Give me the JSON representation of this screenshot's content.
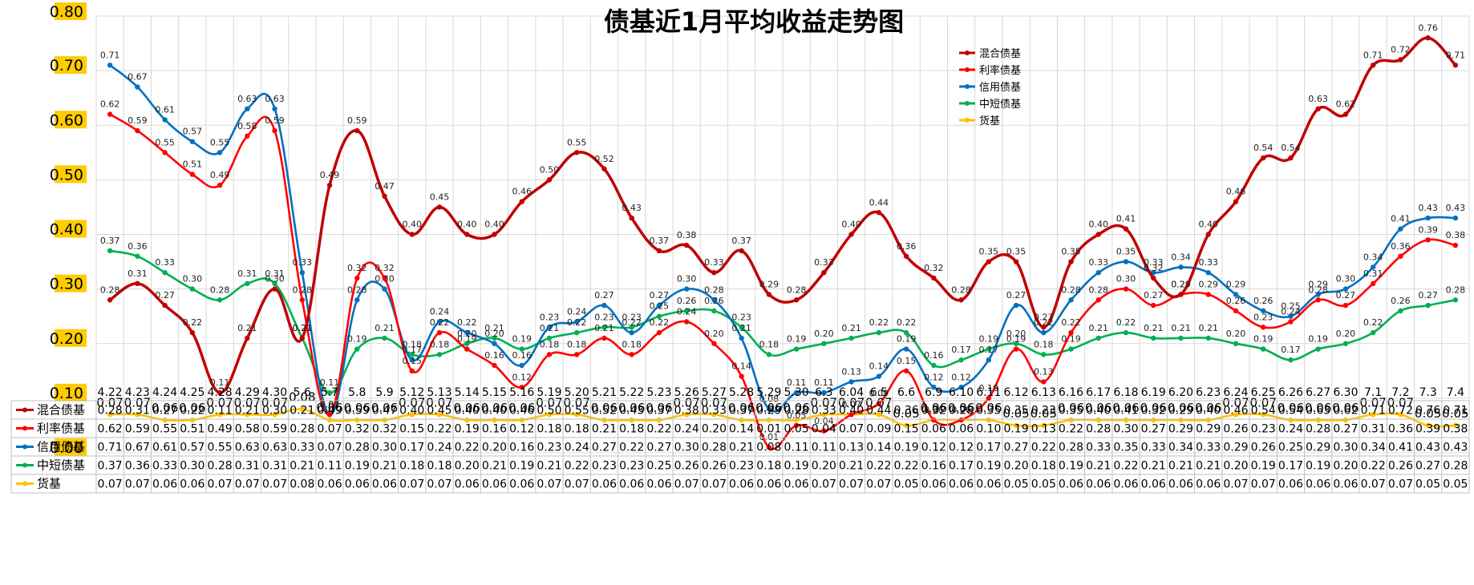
{
  "chart_data": {
    "type": "line",
    "title": "债基近1月平均收益走势图",
    "ylim": [
      0,
      0.8
    ],
    "yticks": [
      "0.00",
      "0.10",
      "0.20",
      "0.30",
      "0.40",
      "0.50",
      "0.60",
      "0.70",
      "0.80"
    ],
    "grid": true,
    "legend_position": "top-right",
    "categories": [
      "4.22",
      "4.23",
      "4.24",
      "4.25",
      "4.28",
      "4.29",
      "4.30",
      "5.6",
      "5.7",
      "5.8",
      "5.9",
      "5.12",
      "5.13",
      "5.14",
      "5.15",
      "5.16",
      "5.19",
      "5.20",
      "5.21",
      "5.22",
      "5.23",
      "5.26",
      "5.27",
      "5.28",
      "5.29",
      "5.30",
      "6.3",
      "6.04",
      "6.5",
      "6.6",
      "6.9",
      "6.10",
      "6.11",
      "6.12",
      "6.13",
      "6.16",
      "6.17",
      "6.18",
      "6.19",
      "6.20",
      "6.23",
      "6.24",
      "6.25",
      "6.26",
      "6.27",
      "6.30",
      "7.1",
      "7.2",
      "7.3",
      "7.4"
    ],
    "series": [
      {
        "name": "混合债基",
        "color": "#c00000",
        "values": [
          0.28,
          0.31,
          0.27,
          0.22,
          0.11,
          0.21,
          0.3,
          0.21,
          0.49,
          0.59,
          0.47,
          0.4,
          0.45,
          0.4,
          0.4,
          0.46,
          0.5,
          0.55,
          0.52,
          0.43,
          0.37,
          0.38,
          0.33,
          0.37,
          0.29,
          0.28,
          0.33,
          0.4,
          0.44,
          0.36,
          0.32,
          0.28,
          0.35,
          0.35,
          0.23,
          0.35,
          0.4,
          0.41,
          0.32,
          0.29,
          0.4,
          0.46,
          0.54,
          0.54,
          0.63,
          0.62,
          0.71,
          0.72,
          0.76,
          0.71
        ]
      },
      {
        "name": "利率债基",
        "color": "#ff0000",
        "values": [
          0.62,
          0.59,
          0.55,
          0.51,
          0.49,
          0.58,
          0.59,
          0.28,
          0.07,
          0.32,
          0.32,
          0.15,
          0.22,
          0.19,
          0.16,
          0.12,
          0.18,
          0.18,
          0.21,
          0.18,
          0.22,
          0.24,
          0.2,
          0.14,
          0.01,
          0.05,
          0.04,
          0.07,
          0.09,
          0.15,
          0.06,
          0.06,
          0.1,
          0.19,
          0.13,
          0.22,
          0.28,
          0.3,
          0.27,
          0.29,
          0.29,
          0.26,
          0.23,
          0.24,
          0.28,
          0.27,
          0.31,
          0.36,
          0.39,
          0.38
        ]
      },
      {
        "name": "信用债基",
        "color": "#0070c0",
        "values": [
          0.71,
          0.67,
          0.61,
          0.57,
          0.55,
          0.63,
          0.63,
          0.33,
          0.07,
          0.28,
          0.3,
          0.17,
          0.24,
          0.22,
          0.2,
          0.16,
          0.23,
          0.24,
          0.27,
          0.22,
          0.27,
          0.3,
          0.28,
          0.21,
          0.08,
          0.11,
          0.11,
          0.13,
          0.14,
          0.19,
          0.12,
          0.12,
          0.17,
          0.27,
          0.22,
          0.28,
          0.33,
          0.35,
          0.33,
          0.34,
          0.33,
          0.29,
          0.26,
          0.25,
          0.29,
          0.3,
          0.34,
          0.41,
          0.43,
          0.43
        ]
      },
      {
        "name": "中短债基",
        "color": "#00b050",
        "values": [
          0.37,
          0.36,
          0.33,
          0.3,
          0.28,
          0.31,
          0.31,
          0.21,
          0.11,
          0.19,
          0.21,
          0.18,
          0.18,
          0.2,
          0.21,
          0.19,
          0.21,
          0.22,
          0.23,
          0.23,
          0.25,
          0.26,
          0.26,
          0.23,
          0.18,
          0.19,
          0.2,
          0.21,
          0.22,
          0.22,
          0.16,
          0.17,
          0.19,
          0.2,
          0.18,
          0.19,
          0.21,
          0.22,
          0.21,
          0.21,
          0.21,
          0.2,
          0.19,
          0.17,
          0.19,
          0.2,
          0.22,
          0.26,
          0.27,
          0.28
        ]
      },
      {
        "name": "货基",
        "color": "#ffc000",
        "values": [
          0.07,
          0.07,
          0.06,
          0.06,
          0.07,
          0.07,
          0.07,
          0.08,
          0.06,
          0.06,
          0.06,
          0.07,
          0.07,
          0.06,
          0.06,
          0.06,
          0.07,
          0.07,
          0.06,
          0.06,
          0.06,
          0.07,
          0.07,
          0.06,
          0.06,
          0.06,
          0.07,
          0.07,
          0.07,
          0.05,
          0.06,
          0.06,
          0.06,
          0.05,
          0.05,
          0.06,
          0.06,
          0.06,
          0.06,
          0.06,
          0.06,
          0.07,
          0.07,
          0.06,
          0.06,
          0.06,
          0.07,
          0.07,
          0.05,
          0.05
        ]
      }
    ]
  }
}
